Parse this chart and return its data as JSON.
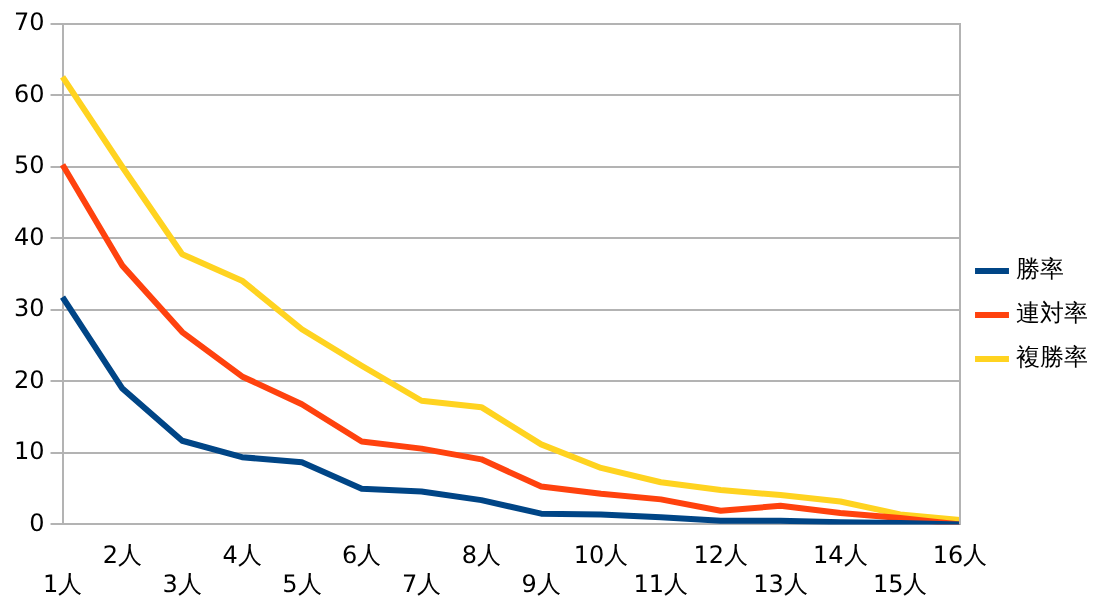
{
  "chart_data": {
    "type": "line",
    "categories": [
      "1人",
      "2人",
      "3人",
      "4人",
      "5人",
      "6人",
      "7人",
      "8人",
      "9人",
      "10人",
      "11人",
      "12人",
      "13人",
      "14人",
      "15人",
      "16人"
    ],
    "series": [
      {
        "name": "勝率",
        "color": "#004586",
        "values": [
          31.8,
          19,
          11.7,
          9.4,
          8.7,
          5,
          4.6,
          3.4,
          1.5,
          1.4,
          1,
          0.5,
          0.5,
          0.3,
          0.2,
          0
        ]
      },
      {
        "name": "連対率",
        "color": "#ff420e",
        "values": [
          50.3,
          36.2,
          26.9,
          20.7,
          16.8,
          11.6,
          10.6,
          9.1,
          5.3,
          4.3,
          3.5,
          1.9,
          2.6,
          1.6,
          0.9,
          0
        ]
      },
      {
        "name": "複勝率",
        "color": "#ffd320",
        "values": [
          62.6,
          50,
          37.8,
          34.1,
          27.3,
          22.2,
          17.3,
          16.4,
          11.2,
          7.9,
          5.9,
          4.8,
          4.1,
          3.2,
          1.4,
          0.6
        ]
      }
    ],
    "ylim": [
      0,
      70
    ],
    "yticks": [
      0,
      10,
      20,
      30,
      40,
      50,
      60,
      70
    ],
    "grid": "y",
    "legend": "right",
    "marker": "none",
    "line_style": "solid"
  }
}
